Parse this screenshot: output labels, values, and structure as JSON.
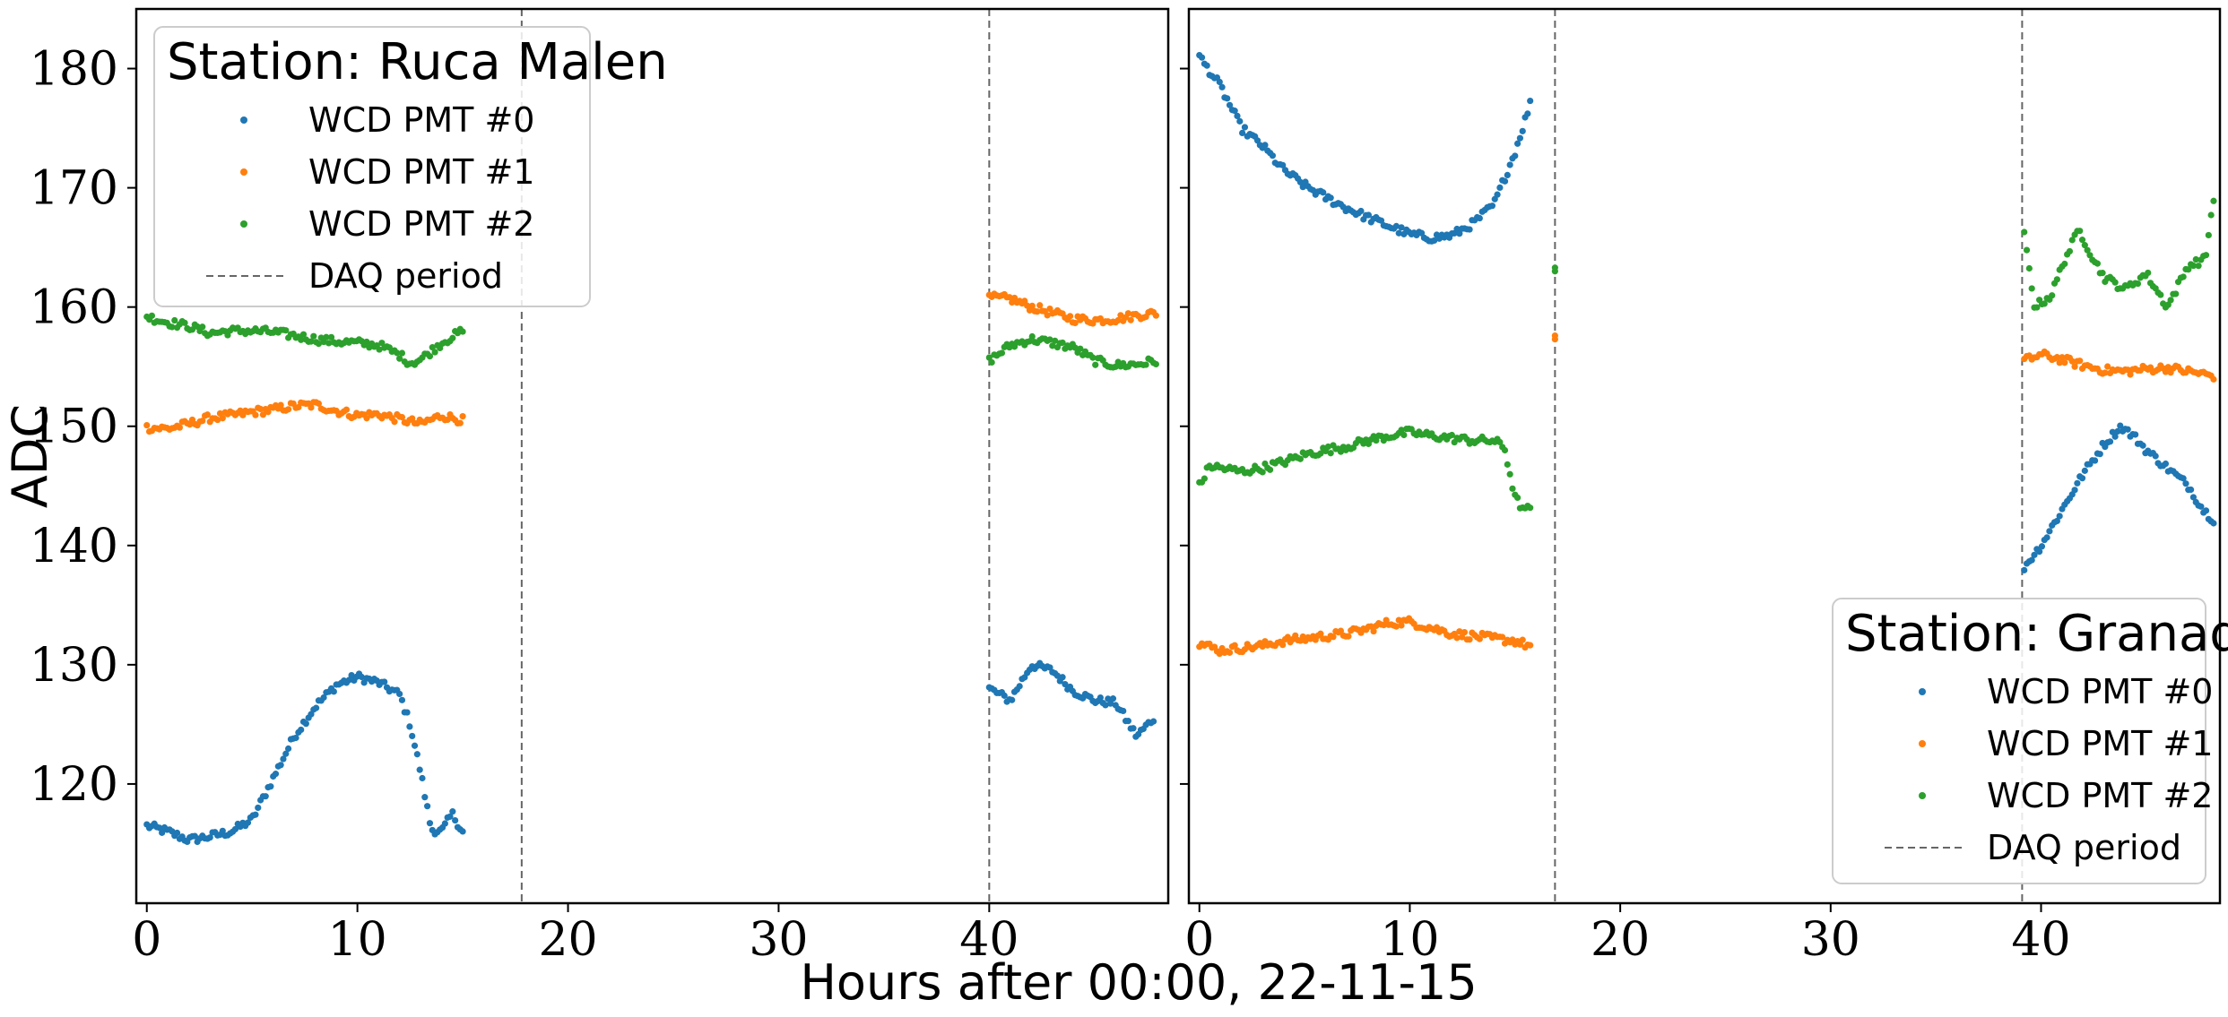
{
  "chart_data": [
    {
      "type": "scatter",
      "legend_title": "Station: Ruca Malen",
      "legend_placement": "upper-left",
      "xlabel": "",
      "ylabel": "ADC",
      "xlim": [
        -0.5,
        48.5
      ],
      "ylim": [
        110,
        185
      ],
      "x_ticks": [
        0,
        10,
        20,
        30,
        40
      ],
      "y_ticks": [
        120,
        130,
        140,
        150,
        160,
        170,
        180
      ],
      "vlines": [
        17.8,
        40.0
      ],
      "series": [
        {
          "name": "WCD PMT #0",
          "color": "#1f77b4",
          "segments": [
            {
              "x0": 0,
              "x1": 15,
              "points": [
                [
                  0,
                  116.5
                ],
                [
                  1,
                  116
                ],
                [
                  2,
                  115.3
                ],
                [
                  3,
                  115.6
                ],
                [
                  4,
                  116
                ],
                [
                  5,
                  117
                ],
                [
                  6,
                  120.5
                ],
                [
                  7,
                  124
                ],
                [
                  8,
                  126.5
                ],
                [
                  9,
                  128.3
                ],
                [
                  10,
                  129
                ],
                [
                  11,
                  128.5
                ],
                [
                  12,
                  127.5
                ],
                [
                  12.5,
                  125
                ],
                [
                  13,
                  121
                ],
                [
                  13.5,
                  116.2
                ],
                [
                  14,
                  116
                ],
                [
                  14.5,
                  117.5
                ],
                [
                  15,
                  116
                ]
              ]
            },
            {
              "x0": 40,
              "x1": 47.8,
              "points": [
                [
                  40,
                  128
                ],
                [
                  41,
                  127
                ],
                [
                  42,
                  130
                ],
                [
                  43,
                  129.5
                ],
                [
                  44,
                  127.8
                ],
                [
                  45,
                  127
                ],
                [
                  46,
                  126.8
                ],
                [
                  47,
                  124
                ],
                [
                  47.8,
                  125.5
                ]
              ]
            }
          ]
        },
        {
          "name": "WCD PMT #1",
          "color": "#ff7f0e",
          "segments": [
            {
              "x0": 0,
              "x1": 15,
              "points": [
                [
                  0,
                  149.9
                ],
                [
                  1,
                  149.8
                ],
                [
                  2,
                  150.2
                ],
                [
                  3,
                  150.7
                ],
                [
                  4,
                  150.9
                ],
                [
                  5,
                  151.2
                ],
                [
                  6,
                  151.4
                ],
                [
                  7,
                  151.7
                ],
                [
                  8,
                  151.8
                ],
                [
                  9,
                  151.3
                ],
                [
                  10,
                  150.9
                ],
                [
                  11,
                  151
                ],
                [
                  12,
                  150.6
                ],
                [
                  13,
                  150.2
                ],
                [
                  14,
                  150.9
                ],
                [
                  15,
                  150.5
                ]
              ]
            },
            {
              "x0": 40,
              "x1": 48,
              "points": [
                [
                  40,
                  160.8
                ],
                [
                  41,
                  160.7
                ],
                [
                  42,
                  160
                ],
                [
                  43,
                  159.5
                ],
                [
                  44,
                  159
                ],
                [
                  45,
                  158.9
                ],
                [
                  46,
                  159
                ],
                [
                  47,
                  159.3
                ],
                [
                  48,
                  159.5
                ]
              ]
            }
          ]
        },
        {
          "name": "WCD PMT #2",
          "color": "#2ca02c",
          "segments": [
            {
              "x0": 0,
              "x1": 15,
              "points": [
                [
                  0,
                  159.2
                ],
                [
                  1,
                  158.7
                ],
                [
                  2,
                  158.4
                ],
                [
                  3,
                  157.8
                ],
                [
                  4,
                  158
                ],
                [
                  5,
                  158
                ],
                [
                  6,
                  157.9
                ],
                [
                  7,
                  157.6
                ],
                [
                  8,
                  157.3
                ],
                [
                  9,
                  157.1
                ],
                [
                  10,
                  157
                ],
                [
                  11,
                  156.8
                ],
                [
                  12,
                  156
                ],
                [
                  12.5,
                  155.3
                ],
                [
                  13,
                  155.6
                ],
                [
                  14,
                  157
                ],
                [
                  15,
                  158
                ]
              ]
            },
            {
              "x0": 40,
              "x1": 48,
              "points": [
                [
                  40,
                  155.5
                ],
                [
                  41,
                  156.8
                ],
                [
                  42,
                  157.3
                ],
                [
                  43,
                  157
                ],
                [
                  44,
                  156.6
                ],
                [
                  45,
                  155.5
                ],
                [
                  46,
                  155.1
                ],
                [
                  47,
                  155.2
                ],
                [
                  48,
                  155.5
                ]
              ]
            }
          ]
        }
      ]
    },
    {
      "type": "scatter",
      "legend_title": "Station: Granada",
      "legend_placement": "lower-right",
      "xlabel": "",
      "ylabel": "",
      "xlim": [
        -0.5,
        48.5
      ],
      "ylim": [
        110,
        185
      ],
      "x_ticks": [
        0,
        10,
        20,
        30,
        40
      ],
      "y_ticks": [
        120,
        130,
        140,
        150,
        160,
        170,
        180
      ],
      "vlines": [
        16.9,
        39.1
      ],
      "series": [
        {
          "name": "WCD PMT #0",
          "color": "#1f77b4",
          "segments": [
            {
              "x0": 0,
              "x1": 15.8,
              "points": [
                [
                  0,
                  181
                ],
                [
                  1,
                  178.5
                ],
                [
                  2,
                  175
                ],
                [
                  3,
                  173.5
                ],
                [
                  4,
                  171.5
                ],
                [
                  5,
                  170.2
                ],
                [
                  6,
                  169.2
                ],
                [
                  7,
                  168.3
                ],
                [
                  8,
                  167.5
                ],
                [
                  9,
                  166.8
                ],
                [
                  10,
                  166.1
                ],
                [
                  11,
                  165.8
                ],
                [
                  12,
                  166
                ],
                [
                  13,
                  167
                ],
                [
                  14,
                  168.6
                ],
                [
                  15,
                  173
                ],
                [
                  15.8,
                  177.5
                ]
              ]
            },
            {
              "x0": 39.2,
              "x1": 48.3,
              "points": [
                [
                  39.2,
                  138.2
                ],
                [
                  40,
                  140
                ],
                [
                  41,
                  143
                ],
                [
                  42,
                  146
                ],
                [
                  43,
                  148.5
                ],
                [
                  43.8,
                  150
                ],
                [
                  44.5,
                  149
                ],
                [
                  45,
                  148
                ],
                [
                  46,
                  146.5
                ],
                [
                  47,
                  145
                ],
                [
                  47.7,
                  143
                ],
                [
                  48.3,
                  142
                ]
              ]
            }
          ]
        },
        {
          "name": "WCD PMT #1",
          "color": "#ff7f0e",
          "segments": [
            {
              "x0": 0,
              "x1": 15.8,
              "points": [
                [
                  0,
                  131.8
                ],
                [
                  1,
                  131.2
                ],
                [
                  2,
                  131.4
                ],
                [
                  3,
                  131.6
                ],
                [
                  4,
                  132
                ],
                [
                  5,
                  132.2
                ],
                [
                  6,
                  132.4
                ],
                [
                  7,
                  132.6
                ],
                [
                  8,
                  133
                ],
                [
                  9,
                  133.5
                ],
                [
                  10,
                  133.6
                ],
                [
                  11,
                  133.1
                ],
                [
                  12,
                  132.6
                ],
                [
                  13,
                  132.4
                ],
                [
                  14,
                  132.2
                ],
                [
                  15,
                  132
                ],
                [
                  15.8,
                  131.5
                ]
              ]
            },
            {
              "x0": 16.9,
              "x1": 16.9,
              "points": [
                [
                  16.9,
                  157.6
                ]
              ]
            },
            {
              "x0": 39.2,
              "x1": 48.3,
              "points": [
                [
                  39.2,
                  155.5
                ],
                [
                  40,
                  156
                ],
                [
                  41,
                  155.6
                ],
                [
                  42,
                  155.1
                ],
                [
                  43,
                  154.7
                ],
                [
                  44,
                  154.6
                ],
                [
                  45,
                  154.8
                ],
                [
                  46,
                  154.9
                ],
                [
                  47,
                  154.6
                ],
                [
                  48.3,
                  154.2
                ]
              ]
            }
          ]
        },
        {
          "name": "WCD PMT #2",
          "color": "#2ca02c",
          "segments": [
            {
              "x0": 0,
              "x1": 15.8,
              "points": [
                [
                  0,
                  145
                ],
                [
                  0.5,
                  146.7
                ],
                [
                  1,
                  146.5
                ],
                [
                  2,
                  146.2
                ],
                [
                  3,
                  146.5
                ],
                [
                  4,
                  147
                ],
                [
                  5,
                  147.6
                ],
                [
                  6,
                  148
                ],
                [
                  7,
                  148.3
                ],
                [
                  8,
                  148.8
                ],
                [
                  9,
                  149.2
                ],
                [
                  10,
                  149.5
                ],
                [
                  11,
                  149.2
                ],
                [
                  12,
                  149
                ],
                [
                  13,
                  148.8
                ],
                [
                  14,
                  148.8
                ],
                [
                  14.5,
                  148.2
                ],
                [
                  15,
                  144
                ],
                [
                  15.5,
                  142.8
                ],
                [
                  15.8,
                  143.5
                ]
              ]
            },
            {
              "x0": 16.9,
              "x1": 16.9,
              "points": [
                [
                  16.9,
                  163.3
                ]
              ]
            },
            {
              "x0": 39.2,
              "x1": 48.3,
              "points": [
                [
                  39.2,
                  166
                ],
                [
                  39.7,
                  160
                ],
                [
                  40.5,
                  161
                ],
                [
                  41,
                  163.5
                ],
                [
                  41.8,
                  166.5
                ],
                [
                  42.5,
                  164
                ],
                [
                  43,
                  162.5
                ],
                [
                  44,
                  161.5
                ],
                [
                  45,
                  162.8
                ],
                [
                  46,
                  160
                ],
                [
                  47,
                  163.5
                ],
                [
                  47.8,
                  164
                ],
                [
                  48.3,
                  170.5
                ]
              ]
            }
          ]
        }
      ]
    }
  ],
  "labels": {
    "ylabel": "ADC",
    "xlabel": "Hours after 00:00, 22-11-15",
    "dash_label": "DAQ period"
  }
}
